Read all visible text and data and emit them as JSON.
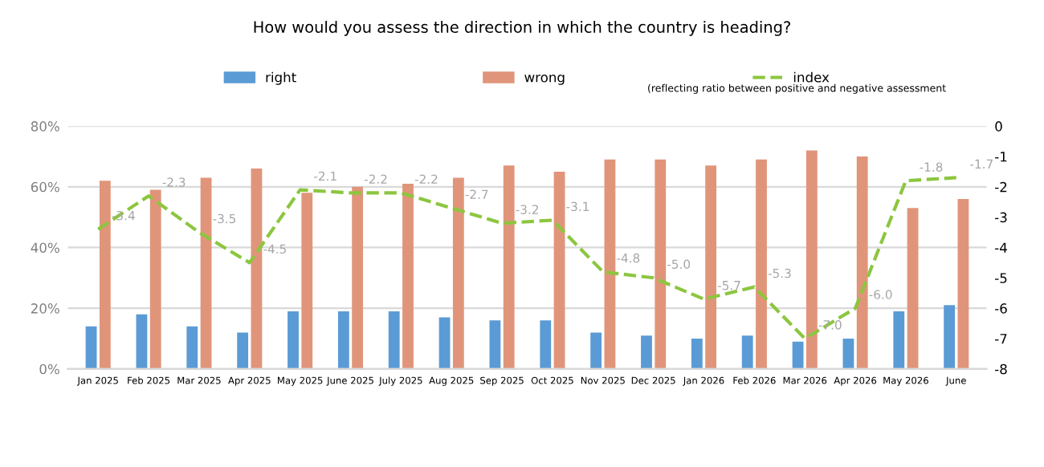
{
  "chart_data": {
    "type": "bar",
    "title": "How would you assess the direction in which the country is heading?",
    "categories": [
      "Jan 2025",
      "Feb 2025",
      "Mar 2025",
      "Apr 2025",
      "May 2025",
      "June 2025",
      "July 2025",
      "Aug 2025",
      "Sep 2025",
      "Oct 2025",
      "Nov 2025",
      "Dec 2025",
      "Jan 2026",
      "Feb 2026",
      "Mar 2026",
      "Apr 2026",
      "May 2026",
      "June"
    ],
    "series": [
      {
        "name": "right",
        "color": "#5b9bd5",
        "values": [
          14,
          18,
          14,
          12,
          19,
          19,
          19,
          17,
          16,
          16,
          12,
          11,
          10,
          11,
          9,
          10,
          19,
          21
        ]
      },
      {
        "name": "wrong",
        "color": "#e0957a",
        "values": [
          62,
          59,
          63,
          66,
          58,
          60,
          61,
          63,
          67,
          65,
          69,
          69,
          67,
          69,
          72,
          70,
          53,
          56
        ]
      },
      {
        "name": "index",
        "type": "line",
        "axis": "y2",
        "color": "#8cc63f",
        "line_style": "dashed",
        "marker": "none",
        "value_labels": [
          "-3.4",
          "-2.3",
          "-3.5",
          "-4.5",
          "-2.1",
          "-2.2",
          "-2.2",
          "-2.7",
          "-3.2",
          "-3.1",
          "-4.8",
          "-5.0",
          "-5.7",
          "-5.3",
          "-7.0",
          "-6.0",
          "-1.8",
          "-1.7"
        ],
        "values": [
          -3.4,
          -2.3,
          -3.5,
          -4.5,
          -2.1,
          -2.2,
          -2.2,
          -2.7,
          -3.2,
          -3.1,
          -4.8,
          -5.0,
          -5.7,
          -5.3,
          -7.0,
          -6.0,
          -1.8,
          -1.7
        ]
      }
    ],
    "ylim": [
      0,
      80
    ],
    "yticks": [
      {
        "value": 0,
        "label": "0%"
      },
      {
        "value": 20,
        "label": "20%"
      },
      {
        "value": 40,
        "label": "40%"
      },
      {
        "value": 60,
        "label": "60%"
      },
      {
        "value": 80,
        "label": "80%"
      }
    ],
    "y2lim": [
      -8,
      0
    ],
    "y2ticks": [
      -8,
      -7,
      -6,
      -5,
      -4,
      -3,
      -2,
      -1,
      0
    ],
    "grid": "y",
    "legend": "top",
    "annotations": [
      "(reflecting ratio between positive and negative assessment"
    ]
  }
}
